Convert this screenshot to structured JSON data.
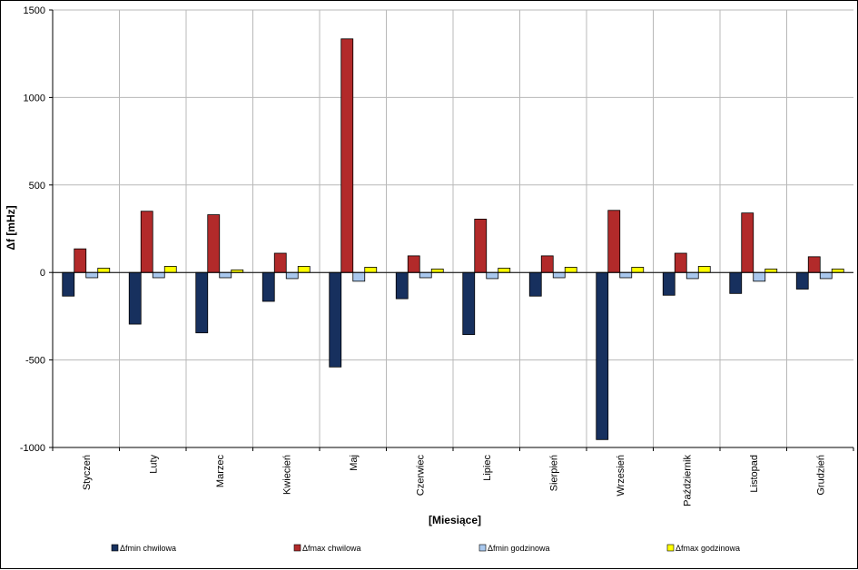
{
  "chart_data": {
    "type": "bar",
    "title": "",
    "xlabel": "[Miesiące]",
    "ylabel": "Δf [mHz]",
    "ylim": [
      -1000,
      1500
    ],
    "yticks": [
      1500,
      1000,
      500,
      0,
      -500,
      -1000
    ],
    "grid": true,
    "legend_position": "bottom",
    "categories": [
      "Styczeń",
      "Luty",
      "Marzec",
      "Kwiecień",
      "Maj",
      "Czerwiec",
      "Lipiec",
      "Sierpień",
      "Wrzesień",
      "Październik",
      "Listopad",
      "Grudzień"
    ],
    "series": [
      {
        "name": "Δfmin chwilowa",
        "color": "#17305e",
        "values": [
          -135,
          -295,
          -345,
          -165,
          -540,
          -150,
          -355,
          -135,
          -955,
          -130,
          -120,
          -95
        ]
      },
      {
        "name": "Δfmax chwilowa",
        "color": "#b22a2a",
        "values": [
          135,
          350,
          330,
          110,
          1335,
          95,
          305,
          95,
          355,
          110,
          340,
          90
        ]
      },
      {
        "name": "Δfmin godzinowa",
        "color": "#a9c8ee",
        "values": [
          -30,
          -30,
          -30,
          -35,
          -50,
          -30,
          -35,
          -30,
          -30,
          -35,
          -50,
          -35
        ]
      },
      {
        "name": "Δfmax godzinowa",
        "color": "#ffff00",
        "values": [
          25,
          35,
          15,
          35,
          30,
          20,
          25,
          30,
          30,
          35,
          20,
          20
        ]
      }
    ]
  }
}
